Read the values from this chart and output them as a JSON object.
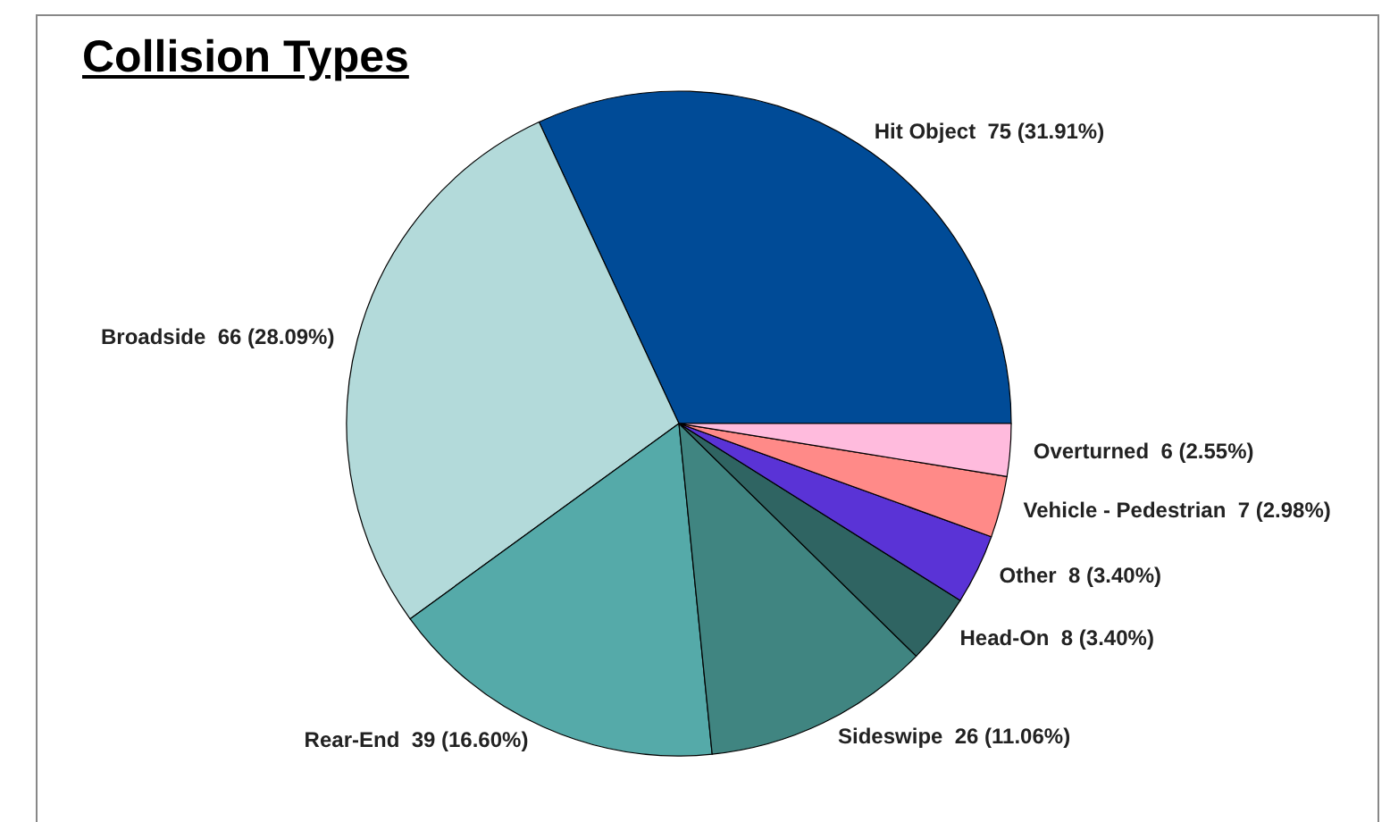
{
  "chart_data": {
    "type": "pie",
    "title": "Collision Types",
    "categories": [
      "Hit Object",
      "Broadside",
      "Rear-End",
      "Sideswipe",
      "Head-On",
      "Other",
      "Vehicle - Pedestrian",
      "Overturned"
    ],
    "values": [
      75,
      66,
      39,
      26,
      8,
      8,
      7,
      6
    ],
    "value_labels": [
      "75 (31.91%)",
      "66 (28.09%)",
      "39 (16.60%)",
      "26 (11.06%)",
      "8 (3.40%)",
      "8 (3.40%)",
      "7 (2.98%)",
      "6 (2.55%)"
    ],
    "colors": [
      "#004b97",
      "#b3dada",
      "#55aaa9",
      "#408581",
      "#2f6462",
      "#5a33d6",
      "#ff8a88",
      "#ffbbdd"
    ],
    "legend": false
  }
}
